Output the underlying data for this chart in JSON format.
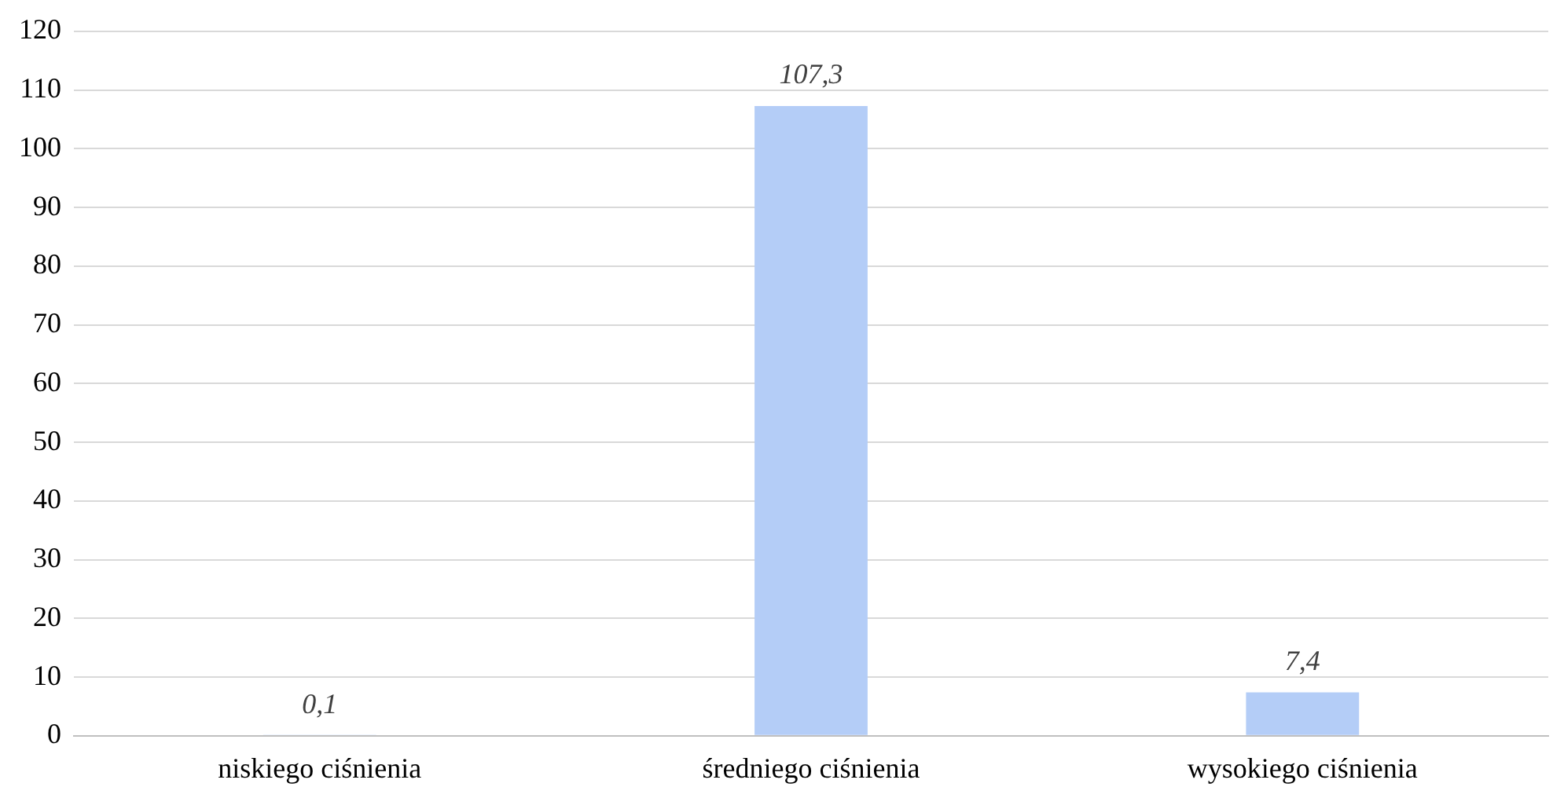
{
  "chart_data": {
    "type": "bar",
    "categories": [
      "niskiego ciśnienia",
      "średniego ciśnienia",
      "wysokiego ciśnienia"
    ],
    "values": [
      0.1,
      107.3,
      7.4
    ],
    "value_labels": [
      "0,1",
      "107,3",
      "7,4"
    ],
    "color": "#b4cdf7",
    "ylim": [
      0,
      120
    ],
    "yticks": [
      0,
      10,
      20,
      30,
      40,
      50,
      60,
      70,
      80,
      90,
      100,
      110,
      120
    ],
    "grid": "y",
    "legend": false
  }
}
